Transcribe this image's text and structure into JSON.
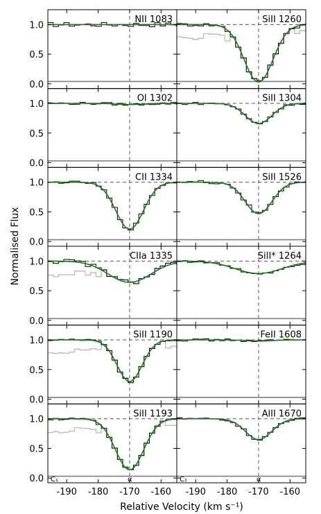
{
  "figure": {
    "ylabel": "Normalised Flux",
    "xlabel": "Relative Velocity (km s⁻¹)"
  },
  "colors": {
    "data": "#000000",
    "fit": "#1a7a1a",
    "blend": "#b8b8b8",
    "error": "#7f7f7f",
    "guide": "#555555"
  },
  "chart_data": {
    "type": "line",
    "layout": "6 rows x 2 columns, shared axes",
    "xlim": [
      -196,
      -155
    ],
    "ylim": [
      -0.08,
      1.25
    ],
    "xticks": [
      -190,
      -180,
      -170,
      -160
    ],
    "xtick_labels": [
      "-190",
      "-180",
      "-170",
      "-160"
    ],
    "yticks": [
      0.0,
      0.5,
      1.0
    ],
    "ytick_labels": [
      "0.0",
      "0.5",
      "1.0"
    ],
    "continuum": 1.0,
    "component_velocity": -170,
    "component_label": "α",
    "component_label_panels": [
      10,
      11
    ],
    "corner_label": "C₁",
    "corner_label_panels": [
      10,
      11
    ],
    "grid": false,
    "panels": [
      {
        "label": "NII 1083",
        "depth": 0.0,
        "sigma": 4.0,
        "noise": 0.04,
        "err": 0.04,
        "blend": "none"
      },
      {
        "label": "SiII 1260",
        "depth": 0.97,
        "sigma": 4.6,
        "noise": 0.03,
        "err": 0.04,
        "blend": "both"
      },
      {
        "label": "OI 1302",
        "depth": 0.02,
        "sigma": 4.0,
        "noise": 0.02,
        "err": 0.03,
        "blend": "none"
      },
      {
        "label": "SiII 1304",
        "depth": 0.34,
        "sigma": 4.2,
        "noise": 0.02,
        "err": 0.03,
        "blend": "none"
      },
      {
        "label": "CII 1334",
        "depth": 0.79,
        "sigma": 4.4,
        "noise": 0.02,
        "err": 0.03,
        "blend": "none"
      },
      {
        "label": "SiII 1526",
        "depth": 0.53,
        "sigma": 4.3,
        "noise": 0.03,
        "err": 0.03,
        "blend": "none"
      },
      {
        "label": "CIIa 1335",
        "depth": 0.36,
        "sigma": 6.8,
        "noise": 0.04,
        "err": 0.03,
        "blend": "left"
      },
      {
        "label": "SiII* 1264",
        "depth": 0.21,
        "sigma": 7.5,
        "noise": 0.02,
        "err": 0.03,
        "blend": "none"
      },
      {
        "label": "SiII 1190",
        "depth": 0.7,
        "sigma": 4.0,
        "noise": 0.02,
        "err": 0.03,
        "blend": "both"
      },
      {
        "label": "FeII 1608",
        "depth": 0.02,
        "sigma": 4.0,
        "noise": 0.02,
        "err": 0.03,
        "blend": "none"
      },
      {
        "label": "SiII 1193",
        "depth": 0.86,
        "sigma": 4.5,
        "noise": 0.02,
        "err": 0.03,
        "blend": "both"
      },
      {
        "label": "AlII 1670",
        "depth": 0.35,
        "sigma": 4.2,
        "noise": 0.02,
        "err": 0.03,
        "blend": "none"
      }
    ]
  }
}
